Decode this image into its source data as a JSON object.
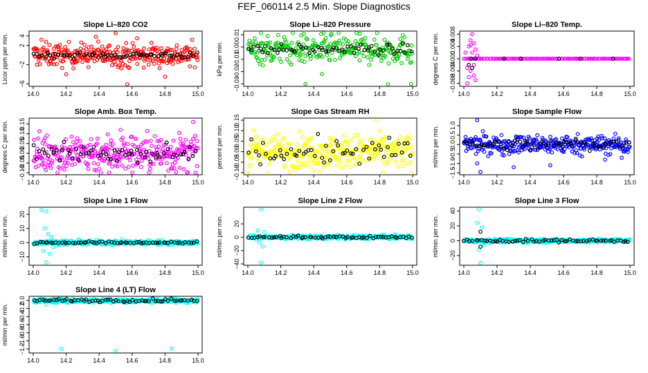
{
  "page_title": "FEF_060114  2.5 Min. Slope Diagnostics",
  "chart_data": [
    {
      "type": "scatter",
      "title": "Slope Li–820 CO2",
      "ylabel": "Licor ppm per min.",
      "xlabel": "",
      "xlim": [
        14.0,
        15.0
      ],
      "ylim": [
        -6.5,
        5
      ],
      "xticks": [
        "14.0",
        "14.2",
        "14.4",
        "14.6",
        "14.8",
        "15.0"
      ],
      "yticks": [
        {
          "v": -6,
          "t": "−6"
        },
        {
          "v": -2,
          "t": "−2"
        },
        {
          "v": 2,
          "t": "2"
        },
        {
          "v": 4,
          "t": "4"
        }
      ],
      "series": [
        {
          "color": "#ff0000",
          "center": 0,
          "spread": 1.2,
          "count": 300,
          "outliers": [
            [
              14.05,
              3.2
            ],
            [
              14.2,
              -4.0
            ],
            [
              14.38,
              3.8
            ],
            [
              14.5,
              4.6
            ],
            [
              14.57,
              -6.2
            ],
            [
              14.63,
              3.5
            ],
            [
              14.8,
              -4.5
            ],
            [
              14.67,
              -2.6
            ]
          ]
        },
        {
          "color": "#000000",
          "center": 0,
          "spread": 0.3,
          "count": 60,
          "outliers": []
        }
      ]
    },
    {
      "type": "scatter",
      "title": "Slope Li–820 Pressure",
      "ylabel": "kPa per min.",
      "xlabel": "",
      "xlim": [
        14.0,
        15.0
      ],
      "ylim": [
        -0.032,
        0.013
      ],
      "xticks": [
        "14.0",
        "14.2",
        "14.4",
        "14.6",
        "14.8",
        "15.0"
      ],
      "yticks": [
        {
          "v": -0.03,
          "t": "−0.03"
        },
        {
          "v": -0.02,
          "t": "−0.02"
        },
        {
          "v": -0.01,
          "t": "−0.01"
        },
        {
          "v": 0.0,
          "t": "0.00"
        },
        {
          "v": 0.01,
          "t": "0.01"
        }
      ],
      "series": [
        {
          "color": "#00cc00",
          "center": -0.002,
          "spread": 0.006,
          "count": 280,
          "outliers": [
            [
              14.08,
              0.012
            ],
            [
              14.35,
              -0.03
            ],
            [
              14.85,
              -0.031
            ],
            [
              14.99,
              -0.03
            ],
            [
              14.45,
              -0.022
            ]
          ]
        },
        {
          "color": "#000000",
          "center": -0.002,
          "spread": 0.002,
          "count": 60,
          "outliers": []
        }
      ]
    },
    {
      "type": "scatter",
      "title": "Slope Li–820 Temp.",
      "ylabel": "degrees C per min.",
      "xlabel": "",
      "xlim": [
        14.0,
        15.0
      ],
      "ylim": [
        -0.009,
        0.009
      ],
      "xticks": [
        "14.0",
        "14.2",
        "14.4",
        "14.6",
        "14.8",
        "15.0"
      ],
      "yticks": [
        {
          "v": -0.008,
          "t": "−0.008"
        },
        {
          "v": -0.004,
          "t": "−0.004"
        },
        {
          "v": 0.0,
          "t": "0.000"
        },
        {
          "v": 0.004,
          "t": "0.004"
        },
        {
          "v": 0.008,
          "t": "0.008"
        }
      ],
      "series": [
        {
          "color": "#ff00ff",
          "center": 0.0,
          "spread": 0.0,
          "count": 120,
          "outliers": [
            [
              14.01,
              0.002
            ],
            [
              14.02,
              -0.003
            ],
            [
              14.03,
              0.004
            ],
            [
              14.03,
              -0.006
            ],
            [
              14.04,
              0.006
            ],
            [
              14.04,
              -0.004
            ],
            [
              14.05,
              0.008
            ],
            [
              14.05,
              0.002
            ],
            [
              14.06,
              -0.002
            ],
            [
              14.06,
              0.005
            ],
            [
              14.07,
              -0.007
            ],
            [
              14.07,
              0.003
            ],
            [
              14.08,
              0.001
            ],
            [
              14.02,
              -0.008
            ],
            [
              14.04,
              0.0045
            ],
            [
              14.06,
              -0.0055
            ]
          ]
        },
        {
          "color": "#000000",
          "center": 0.0,
          "spread": 0.0,
          "count": 6,
          "outliers": [
            [
              14.03,
              -0.002
            ],
            [
              14.05,
              -0.003
            ],
            [
              14.07,
              0.0
            ]
          ]
        }
      ]
    },
    {
      "type": "scatter",
      "title": "Slope Amb. Box Temp.",
      "ylabel": "degrees C per min.",
      "xlabel": "",
      "xlim": [
        14.0,
        15.0
      ],
      "ylim": [
        -0.11,
        0.18
      ],
      "xticks": [
        "14.0",
        "14.2",
        "14.4",
        "14.6",
        "14.8",
        "15.0"
      ],
      "yticks": [
        {
          "v": -0.1,
          "t": "−0.10"
        },
        {
          "v": -0.05,
          "t": "−0.05"
        },
        {
          "v": 0.0,
          "t": "0.00"
        },
        {
          "v": 0.05,
          "t": "0.05"
        },
        {
          "v": 0.1,
          "t": "0.10"
        },
        {
          "v": 0.15,
          "t": "0.15"
        }
      ],
      "series": [
        {
          "color": "#ff00ff",
          "center": 0.0,
          "spread": 0.05,
          "count": 330,
          "outliers": [
            [
              14.46,
              -0.1
            ],
            [
              14.97,
              0.16
            ],
            [
              14.53,
              0.12
            ]
          ]
        },
        {
          "color": "#000000",
          "center": 0.0,
          "spread": 0.02,
          "count": 60,
          "outliers": []
        }
      ]
    },
    {
      "type": "scatter",
      "title": "Slope Gas Stream RH",
      "ylabel": "percent per min.",
      "xlabel": "",
      "xlim": [
        14.0,
        15.0
      ],
      "ylim": [
        -0.11,
        0.16
      ],
      "xticks": [
        "14.0",
        "14.2",
        "14.4",
        "14.6",
        "14.8",
        "15.0"
      ],
      "yticks": [
        {
          "v": -0.1,
          "t": "−0.10"
        },
        {
          "v": -0.05,
          "t": "−0.05"
        },
        {
          "v": 0.0,
          "t": "0.00"
        },
        {
          "v": 0.05,
          "t": "0.05"
        },
        {
          "v": 0.1,
          "t": "0.10"
        },
        {
          "v": 0.15,
          "t": "0.15"
        }
      ],
      "series": [
        {
          "color": "#ffff00",
          "center": 0.0,
          "spread": 0.04,
          "count": 340,
          "outliers": [
            [
              14.78,
              0.15
            ],
            [
              14.82,
              -0.11
            ],
            [
              14.0,
              -0.1
            ]
          ]
        },
        {
          "color": "#000000",
          "center": 0.0,
          "spread": 0.03,
          "count": 55,
          "outliers": []
        }
      ]
    },
    {
      "type": "scatter",
      "title": "Slope Sample Flow",
      "ylabel": "ml/min per min.",
      "xlabel": "",
      "xlim": [
        14.0,
        15.0
      ],
      "ylim": [
        -1.6,
        1.4
      ],
      "xticks": [
        "14.0",
        "14.2",
        "14.4",
        "14.6",
        "14.8",
        "15.0"
      ],
      "yticks": [
        {
          "v": -1.5,
          "t": "−1.5"
        },
        {
          "v": -1.0,
          "t": "−1.0"
        },
        {
          "v": -0.5,
          "t": "−0.5"
        },
        {
          "v": 0.0,
          "t": "0.0"
        },
        {
          "v": 0.5,
          "t": "0.5"
        },
        {
          "v": 1.0,
          "t": "1.0"
        }
      ],
      "series": [
        {
          "color": "#0000ff",
          "center": 0.0,
          "spread": 0.25,
          "count": 320,
          "outliers": [
            [
              14.08,
              1.3
            ],
            [
              14.1,
              -1.45
            ],
            [
              14.08,
              -1.0
            ],
            [
              14.3,
              -1.2
            ],
            [
              14.52,
              -1.1
            ],
            [
              14.85,
              -0.8
            ],
            [
              14.95,
              -0.7
            ]
          ]
        },
        {
          "color": "#000000",
          "center": 0.0,
          "spread": 0.15,
          "count": 60,
          "outliers": []
        }
      ]
    },
    {
      "type": "scatter",
      "title": "Slope Line 1 Flow",
      "ylabel": "ml/min per min.",
      "xlabel": "",
      "xlim": [
        14.0,
        15.0
      ],
      "ylim": [
        -16,
        25
      ],
      "xticks": [
        "14.0",
        "14.2",
        "14.4",
        "14.6",
        "14.8",
        "15.0"
      ],
      "yticks": [
        {
          "v": -10,
          "t": "−10"
        },
        {
          "v": 0,
          "t": "0"
        },
        {
          "v": 10,
          "t": "10"
        },
        {
          "v": 20,
          "t": "20"
        }
      ],
      "series": [
        {
          "color": "#00ffff",
          "center": 0.0,
          "spread": 0.8,
          "count": 300,
          "outliers": [
            [
              14.05,
              23
            ],
            [
              14.08,
              22
            ],
            [
              14.07,
              10
            ],
            [
              14.08,
              -14
            ],
            [
              14.06,
              -6
            ],
            [
              14.09,
              6
            ],
            [
              14.1,
              -8
            ],
            [
              14.11,
              4
            ],
            [
              14.12,
              -3
            ]
          ]
        },
        {
          "color": "#000000",
          "center": 0.0,
          "spread": 0.4,
          "count": 60,
          "outliers": []
        }
      ]
    },
    {
      "type": "scatter",
      "title": "Slope Line 2 Flow",
      "ylabel": "ml/min per min.",
      "xlabel": "",
      "xlim": [
        14.0,
        15.0
      ],
      "ylim": [
        -42,
        45
      ],
      "xticks": [
        "14.0",
        "14.2",
        "14.4",
        "14.6",
        "14.8",
        "15.0"
      ],
      "yticks": [
        {
          "v": -40,
          "t": "−40"
        },
        {
          "v": -20,
          "t": "−20"
        },
        {
          "v": 0,
          "t": "0"
        },
        {
          "v": 20,
          "t": "20"
        }
      ],
      "series": [
        {
          "color": "#00ffff",
          "center": 0.0,
          "spread": 1.5,
          "count": 300,
          "outliers": [
            [
              14.08,
              43
            ],
            [
              14.08,
              -38
            ],
            [
              14.06,
              10
            ],
            [
              14.09,
              -14
            ],
            [
              14.07,
              -8
            ],
            [
              14.1,
              8
            ]
          ]
        },
        {
          "color": "#000000",
          "center": 0.0,
          "spread": 1.0,
          "count": 60,
          "outliers": []
        }
      ]
    },
    {
      "type": "scatter",
      "title": "Slope Line 3 Flow",
      "ylabel": "ml/min per min.",
      "xlabel": "",
      "xlim": [
        14.0,
        15.0
      ],
      "ylim": [
        -33,
        45
      ],
      "xticks": [
        "14.0",
        "14.2",
        "14.4",
        "14.6",
        "14.8",
        "15.0"
      ],
      "yticks": [
        {
          "v": -20,
          "t": "−20"
        },
        {
          "v": 0,
          "t": "0"
        },
        {
          "v": 20,
          "t": "20"
        },
        {
          "v": 40,
          "t": "40"
        }
      ],
      "series": [
        {
          "color": "#00ffff",
          "center": 0.0,
          "spread": 1.3,
          "count": 300,
          "outliers": [
            [
              14.09,
              43
            ],
            [
              14.1,
              -30
            ],
            [
              14.08,
              24
            ],
            [
              14.11,
              18
            ],
            [
              14.09,
              -12
            ],
            [
              14.12,
              -6
            ]
          ]
        },
        {
          "color": "#000000",
          "center": 0.0,
          "spread": 1.0,
          "count": 60,
          "outliers": [
            [
              14.1,
              12
            ],
            [
              14.1,
              -8
            ]
          ]
        }
      ]
    },
    {
      "type": "scatter",
      "title": "Slope Line 4 (LT) Flow",
      "ylabel": "ml/min per min.",
      "xlabel": "",
      "xlim": [
        14.0,
        15.0
      ],
      "ylim": [
        -1.3,
        0.1
      ],
      "xticks": [
        "14.0",
        "14.2",
        "14.4",
        "14.6",
        "14.8",
        "15.0"
      ],
      "yticks": [
        {
          "v": -1.2,
          "t": "−1.2"
        },
        {
          "v": -1.0,
          "t": "−1.0"
        },
        {
          "v": -0.8,
          "t": "−0.8"
        },
        {
          "v": -0.6,
          "t": "−0.6"
        },
        {
          "v": -0.4,
          "t": "−0.4"
        },
        {
          "v": -0.2,
          "t": "−0.2"
        },
        {
          "v": 0.0,
          "t": "0.0"
        }
      ],
      "series": [
        {
          "color": "#00ffff",
          "center": -0.01,
          "spread": 0.025,
          "count": 300,
          "outliers": [
            [
              14.17,
              -1.2
            ],
            [
              14.5,
              -1.27
            ],
            [
              14.84,
              -1.19
            ],
            [
              14.08,
              -0.1
            ],
            [
              14.05,
              0.04
            ]
          ]
        },
        {
          "color": "#000000",
          "center": 0.0,
          "spread": 0.02,
          "count": 60,
          "outliers": []
        }
      ]
    }
  ]
}
